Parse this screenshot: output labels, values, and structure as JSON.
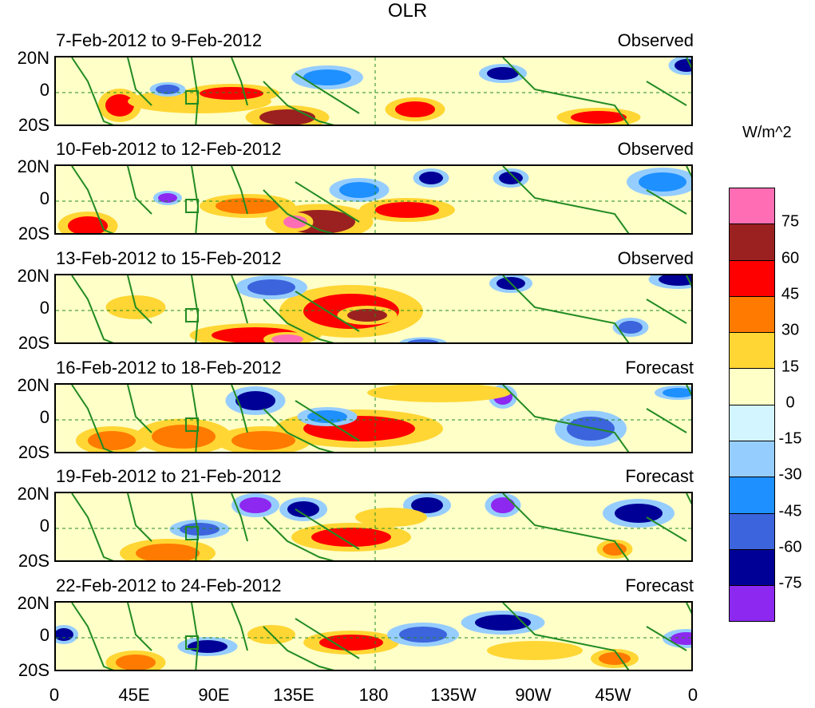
{
  "title": "OLR",
  "unit": "W/m^2",
  "panels": [
    {
      "date": "7-Feb-2012 to 9-Feb-2012",
      "status": "Observed"
    },
    {
      "date": "10-Feb-2012 to 12-Feb-2012",
      "status": "Observed"
    },
    {
      "date": "13-Feb-2012 to 15-Feb-2012",
      "status": "Observed"
    },
    {
      "date": "16-Feb-2012 to 18-Feb-2012",
      "status": "Forecast"
    },
    {
      "date": "19-Feb-2012 to 21-Feb-2012",
      "status": "Forecast"
    },
    {
      "date": "22-Feb-2012 to 24-Feb-2012",
      "status": "Forecast"
    }
  ],
  "lat_labels": [
    "20N",
    "0",
    "20S"
  ],
  "lon_labels": [
    "0",
    "45E",
    "90E",
    "135E",
    "180",
    "135W",
    "90W",
    "45W",
    "0"
  ],
  "colorbar": {
    "labels": [
      "75",
      "60",
      "45",
      "30",
      "15",
      "0",
      "-15",
      "-30",
      "-45",
      "-60",
      "-75"
    ],
    "colors": [
      "#ff6eb4",
      "#9b2020",
      "#ff0000",
      "#ff7a00",
      "#ffd633",
      "#ffffc8",
      "#d2f5ff",
      "#96cdff",
      "#1e90ff",
      "#3c64dc",
      "#000096",
      "#8c28f0"
    ]
  }
}
